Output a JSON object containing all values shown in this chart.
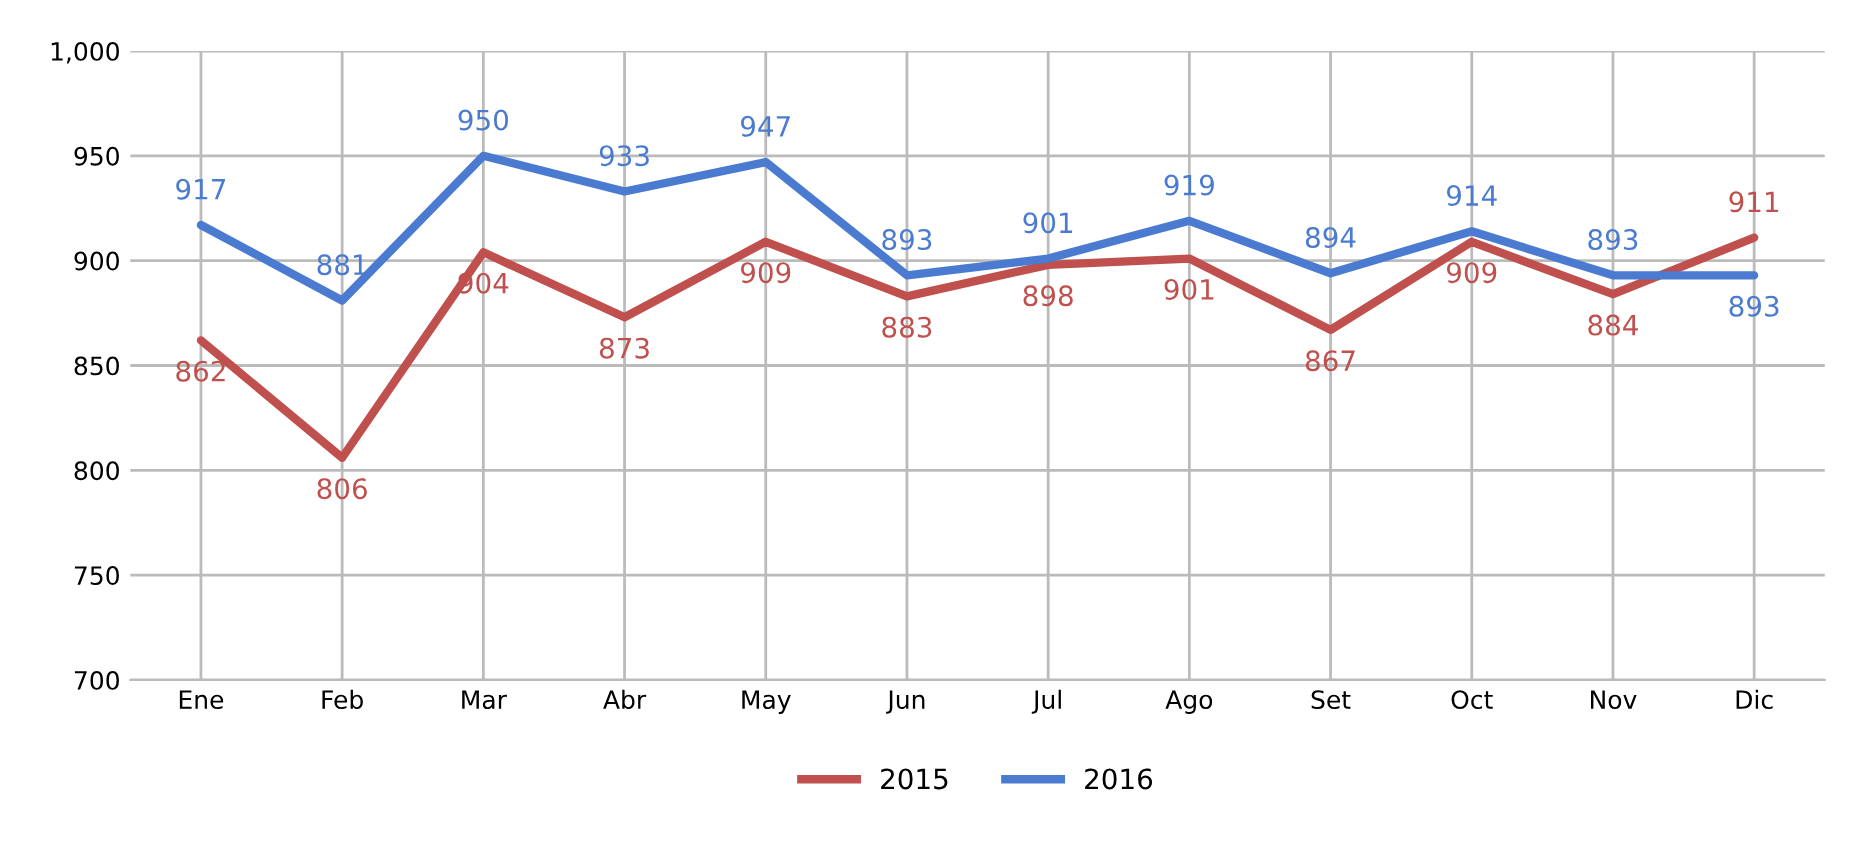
{
  "chart_data": {
    "type": "line",
    "categories": [
      "Ene",
      "Feb",
      "Mar",
      "Abr",
      "May",
      "Jun",
      "Jul",
      "Ago",
      "Set",
      "Oct",
      "Nov",
      "Dic"
    ],
    "series": [
      {
        "name": "2015",
        "color": "#c0504d",
        "values": [
          862,
          806,
          904,
          873,
          909,
          883,
          898,
          901,
          867,
          909,
          884,
          911
        ]
      },
      {
        "name": "2016",
        "color": "#4a7bd0",
        "values": [
          917,
          881,
          950,
          933,
          947,
          893,
          901,
          919,
          894,
          914,
          893,
          893
        ]
      }
    ],
    "ylim": [
      700,
      1000
    ],
    "yticks": [
      700,
      750,
      800,
      850,
      900,
      950,
      {
        "value": 1000,
        "label": "1,000"
      }
    ],
    "grid": true,
    "legend": "bottom",
    "data_labels": true,
    "marker": "none",
    "line_style": "solid"
  }
}
